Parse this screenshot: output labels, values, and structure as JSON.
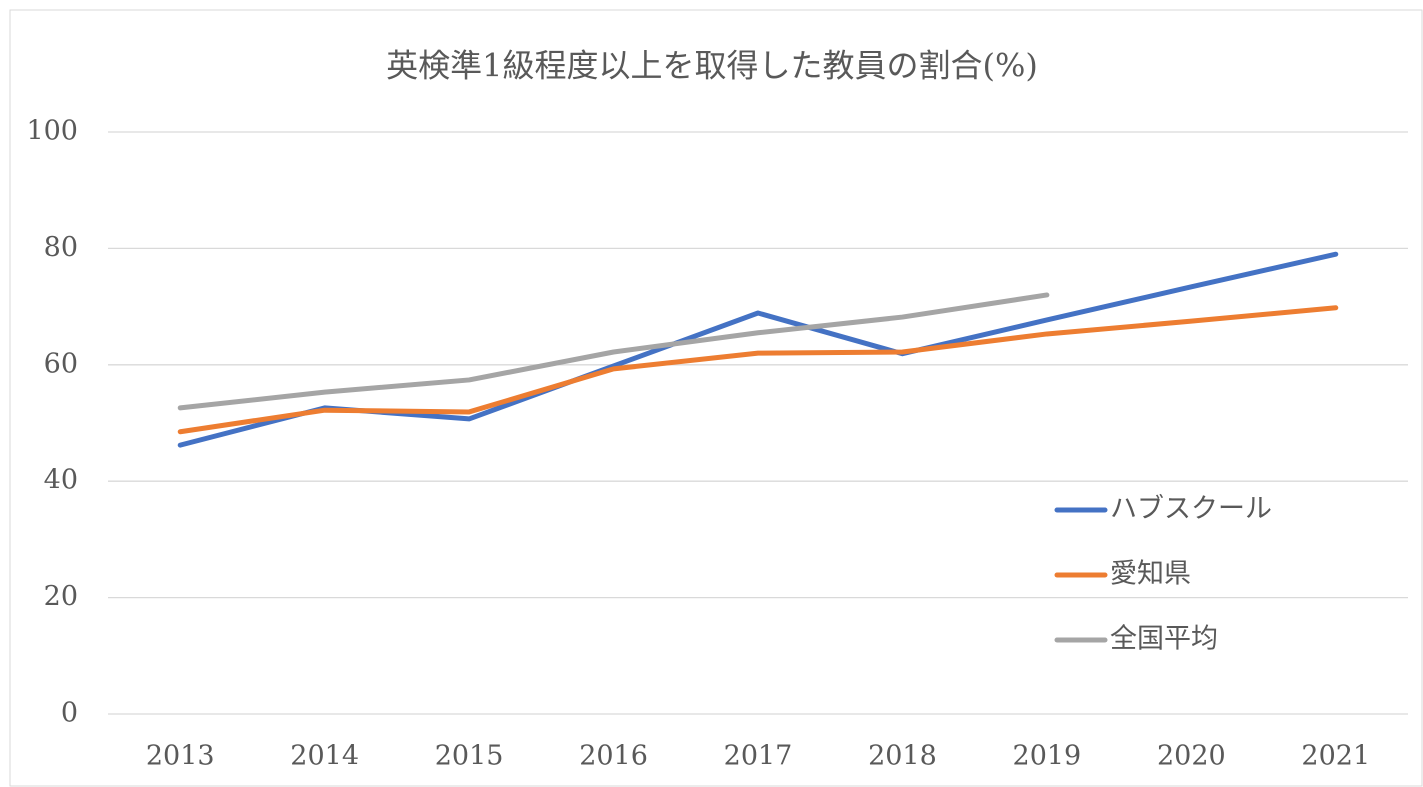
{
  "chart_data": {
    "type": "line",
    "title": "英検準1級程度以上を取得した教員の割合(%)",
    "categories": [
      "2013",
      "2014",
      "2015",
      "2016",
      "2017",
      "2018",
      "2019",
      "2020",
      "2021"
    ],
    "series": [
      {
        "name": "ハブスクール",
        "color": "#4472c4",
        "values": [
          46.2,
          52.6,
          50.7,
          59.8,
          68.9,
          61.9,
          67.7,
          73.4,
          79.0
        ]
      },
      {
        "name": "愛知県",
        "color": "#ed7d31",
        "values": [
          48.5,
          52.2,
          51.9,
          59.3,
          62.0,
          62.2,
          65.3,
          67.5,
          69.8
        ]
      },
      {
        "name": "全国平均",
        "color": "#a5a5a5",
        "values": [
          52.6,
          55.3,
          57.4,
          62.2,
          65.5,
          68.2,
          72.0,
          null,
          null
        ]
      }
    ],
    "ylim": [
      0,
      100
    ],
    "yticks": [
      0,
      20,
      40,
      60,
      80,
      100
    ],
    "grid": true,
    "legend": "right"
  }
}
